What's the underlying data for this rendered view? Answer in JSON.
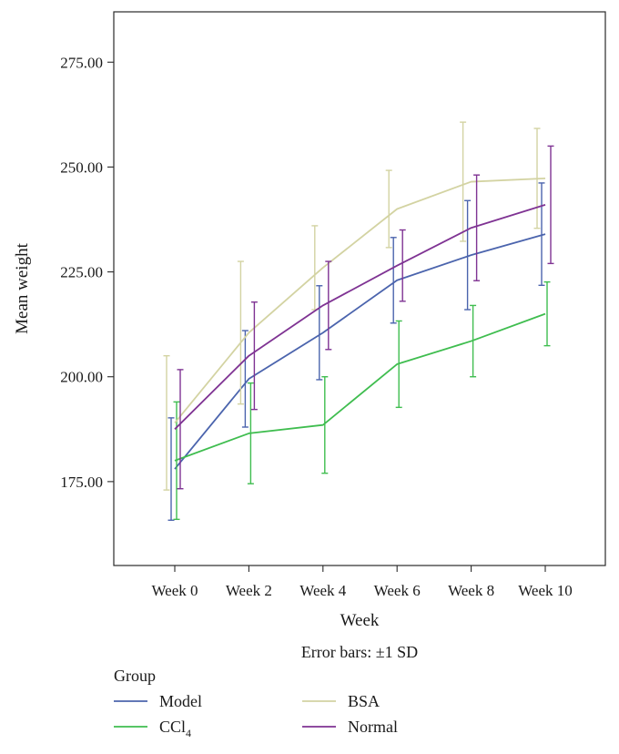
{
  "chart_data": {
    "type": "line",
    "title": "",
    "xlabel": "Week",
    "ylabel": "Mean weight",
    "note": "Error bars: ±1 SD",
    "categories": [
      "Week 0",
      "Week 2",
      "Week 4",
      "Week 6",
      "Week 8",
      "Week 10"
    ],
    "yticks": [
      175,
      200,
      225,
      250,
      275
    ],
    "ytick_labels": [
      "175.00",
      "200.00",
      "225.00",
      "250.00",
      "275.00"
    ],
    "ylim": [
      155,
      287
    ],
    "grid": false,
    "legend": {
      "title": "Group",
      "placement": "bottom-left",
      "columns": 2
    },
    "series": [
      {
        "name": "Model",
        "color": "#4b64ad",
        "values": [
          178,
          199.5,
          210.5,
          223,
          229,
          234
        ],
        "errors": [
          12.2,
          11.5,
          11.2,
          10.2,
          13,
          12.2
        ]
      },
      {
        "name": "CCl",
        "name_subscript": "4",
        "color": "#3fbd4f",
        "values": [
          180,
          186.5,
          188.5,
          203,
          208.5,
          215
        ],
        "errors": [
          14,
          12,
          11.5,
          10.3,
          8.5,
          7.6
        ]
      },
      {
        "name": "BSA",
        "color": "#d3d3a2",
        "values": [
          189,
          210.5,
          226,
          240,
          246.5,
          247.3
        ],
        "errors": [
          16,
          17,
          10,
          9.2,
          14.2,
          11.9
        ]
      },
      {
        "name": "Normal",
        "color": "#7f3393",
        "values": [
          187.5,
          205,
          217,
          226.5,
          235.5,
          241
        ],
        "errors": [
          14.2,
          12.8,
          10.5,
          8.5,
          12.6,
          14
        ]
      }
    ]
  }
}
